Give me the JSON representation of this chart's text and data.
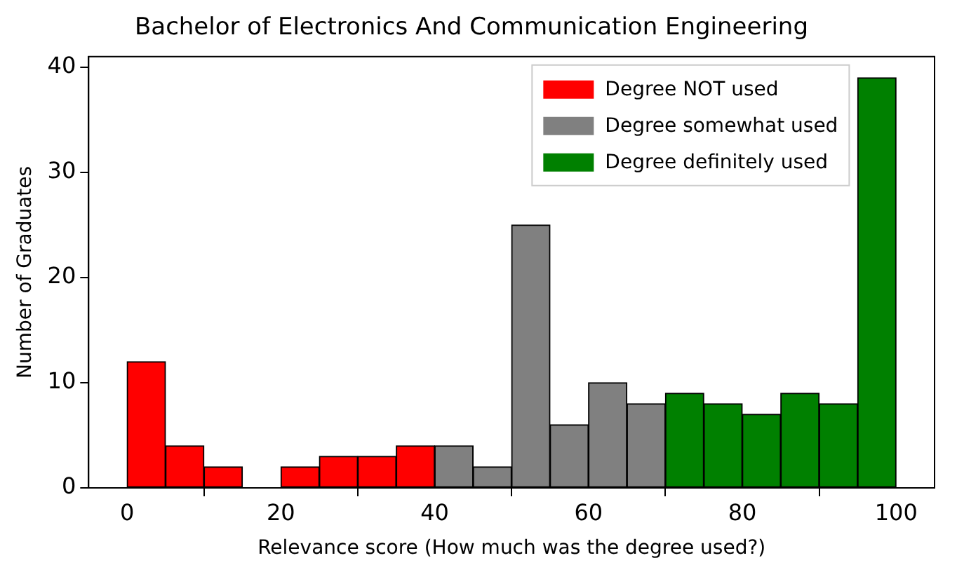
{
  "chart_data": {
    "type": "histogram",
    "title": "Bachelor of Electronics And Communication Engineering",
    "xlabel": "Relevance score (How much was the degree used?)",
    "ylabel": "Number of Graduates",
    "bins": [
      0,
      5,
      10,
      15,
      20,
      25,
      30,
      35,
      40,
      45,
      50,
      55,
      60,
      65,
      70,
      75,
      80,
      85,
      90,
      95,
      100
    ],
    "series": [
      {
        "name": "Degree NOT used",
        "color": "#ff0000",
        "values": [
          12,
          4,
          2,
          0,
          2,
          3,
          3,
          4,
          null,
          null,
          null,
          null,
          null,
          null,
          null,
          null,
          null,
          null,
          null,
          null
        ]
      },
      {
        "name": "Degree somewhat used",
        "color": "#808080",
        "values": [
          null,
          null,
          null,
          null,
          null,
          null,
          null,
          null,
          4,
          2,
          25,
          6,
          10,
          8,
          null,
          null,
          null,
          null,
          null,
          null
        ]
      },
      {
        "name": "Degree definitely used",
        "color": "#008000",
        "values": [
          null,
          null,
          null,
          null,
          null,
          null,
          null,
          null,
          null,
          null,
          null,
          null,
          null,
          null,
          9,
          8,
          7,
          9,
          8,
          39
        ]
      }
    ],
    "xlim": [
      -5,
      105
    ],
    "xticks": [
      0,
      20,
      40,
      60,
      80,
      100
    ],
    "ylim": [
      0,
      41
    ],
    "yticks": [
      0,
      10,
      20,
      30,
      40
    ],
    "grid": false,
    "legend": "top right"
  }
}
